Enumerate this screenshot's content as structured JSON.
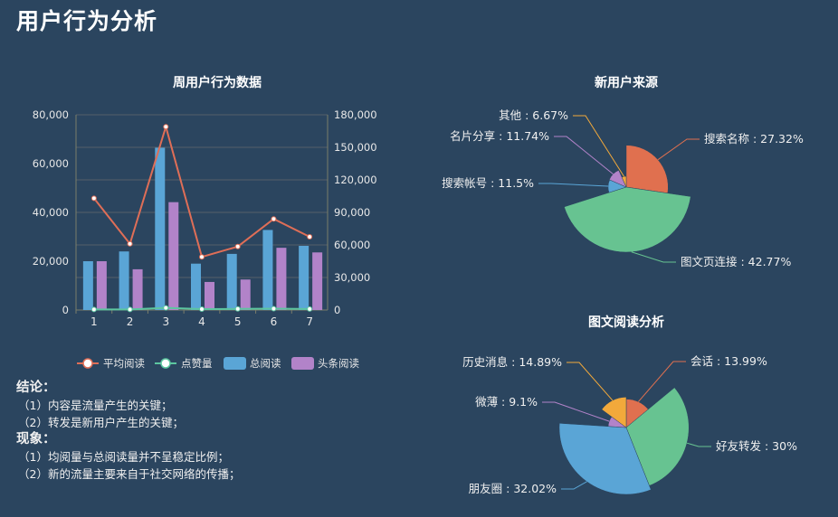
{
  "page_title": "用户行为分析",
  "colors": {
    "background": "#2b455f",
    "orange": "#e0704f",
    "green": "#67c391",
    "blue": "#5aa5d6",
    "purple": "#b283c9",
    "yellow": "#f2a93b",
    "line": "#df6e57",
    "like_line": "#5cc6a0"
  },
  "chart_data": [
    {
      "type": "bar",
      "title": "周用户行为数据",
      "categories": [
        "1",
        "2",
        "3",
        "4",
        "5",
        "6",
        "7"
      ],
      "y_left": {
        "range": [
          0,
          80000
        ],
        "ticks": [
          "0",
          "20,000",
          "40,000",
          "60,000",
          "80,000"
        ]
      },
      "y_right": {
        "range": [
          0,
          180000
        ],
        "ticks": [
          "0",
          "30,000",
          "60,000",
          "90,000",
          "120,000",
          "150,000",
          "180,000"
        ]
      },
      "grid": true,
      "legend_position": "bottom",
      "series": [
        {
          "name": "平均阅读",
          "type": "line",
          "axis": "right",
          "color": "#df6e57",
          "values": [
            103000,
            61000,
            169000,
            49000,
            58500,
            84000,
            67500
          ]
        },
        {
          "name": "点赞量",
          "type": "line",
          "axis": "right",
          "color": "#5cc6a0",
          "values": [
            500,
            500,
            2000,
            800,
            1000,
            1200,
            900
          ]
        },
        {
          "name": "总阅读",
          "type": "bar",
          "axis": "left",
          "color": "#5aa5d6",
          "values": [
            20000,
            24000,
            66500,
            19000,
            23000,
            32800,
            26300
          ]
        },
        {
          "name": "头条阅读",
          "type": "bar",
          "axis": "left",
          "color": "#b283c9",
          "values": [
            20000,
            16700,
            44200,
            11500,
            12500,
            25500,
            23600
          ]
        }
      ]
    },
    {
      "type": "pie",
      "rose": "radius",
      "title": "新用户来源",
      "slices": [
        {
          "name": "搜索名称",
          "value": 27.32,
          "label": "搜索名称 : 27.32%",
          "color": "#e0704f"
        },
        {
          "name": "图文页连接",
          "value": 42.77,
          "label": "图文页连接 : 42.77%",
          "color": "#67c391"
        },
        {
          "name": "搜索帐号",
          "value": 11.5,
          "label": "搜索帐号 : 11.5%",
          "color": "#5aa5d6"
        },
        {
          "name": "名片分享",
          "value": 11.74,
          "label": "名片分享 : 11.74%",
          "color": "#b283c9"
        },
        {
          "name": "其他",
          "value": 6.67,
          "label": "其他 : 6.67%",
          "color": "#f2a93b"
        }
      ]
    },
    {
      "type": "pie",
      "rose": "radius",
      "title": "图文阅读分析",
      "slices": [
        {
          "name": "会话",
          "value": 13.99,
          "label": "会话 : 13.99%",
          "color": "#e0704f"
        },
        {
          "name": "好友转发",
          "value": 30,
          "label": "好友转发 : 30%",
          "color": "#67c391"
        },
        {
          "name": "朋友圈",
          "value": 32.02,
          "label": "朋友圈 : 32.02%",
          "color": "#5aa5d6"
        },
        {
          "name": "微薄",
          "value": 9.1,
          "label": "微薄 : 9.1%",
          "color": "#b283c9"
        },
        {
          "name": "历史消息",
          "value": 14.89,
          "label": "历史消息 : 14.89%",
          "color": "#f2a93b"
        }
      ]
    }
  ],
  "notes": {
    "conclusion_heading": "结论：",
    "conclusions": [
      "（1）内容是流量产生的关键；",
      "（2）转发是新用户产生的关键；"
    ],
    "phenomenon_heading": "现象：",
    "phenomena": [
      "（1）均阅量与总阅读量并不呈稳定比例；",
      "（2）新的流量主要来自于社交网络的传播；"
    ]
  }
}
